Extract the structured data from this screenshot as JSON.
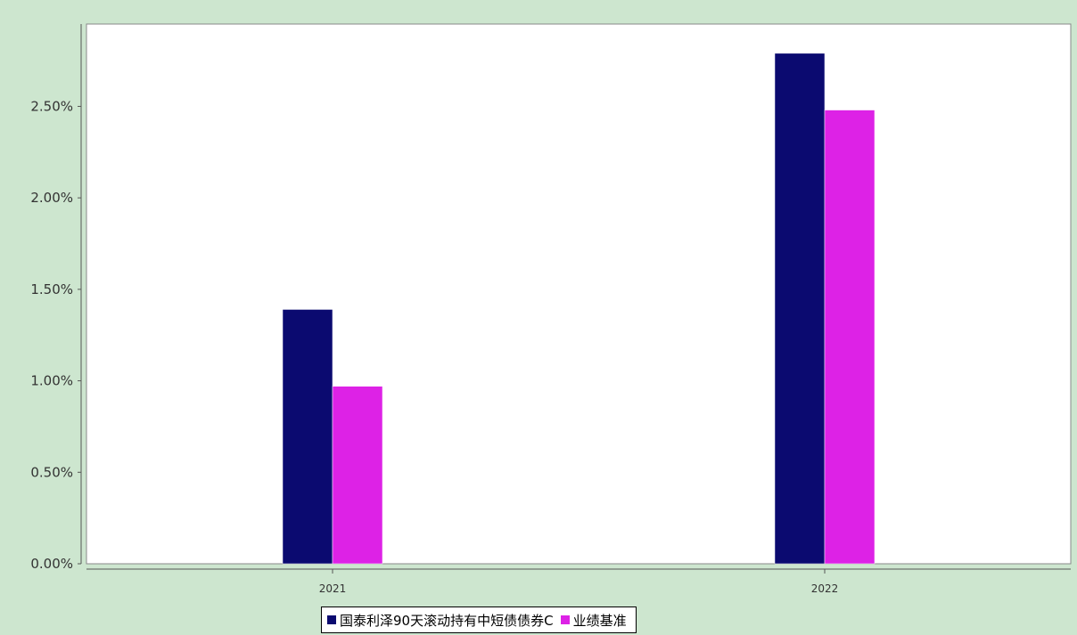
{
  "chart_data": {
    "type": "bar",
    "categories": [
      "2021",
      "2022"
    ],
    "series": [
      {
        "name": "国泰利泽90天滚动持有中短债债券C",
        "values": [
          1.39,
          2.79
        ],
        "color": "#0b0a70"
      },
      {
        "name": "业绩基准",
        "values": [
          0.97,
          2.48
        ],
        "color": "#dd22e6"
      }
    ],
    "y_ticks": [
      "0.00%",
      "0.50%",
      "1.00%",
      "1.50%",
      "2.00%",
      "2.50%"
    ],
    "y_tick_values": [
      0,
      0.5,
      1.0,
      1.5,
      2.0,
      2.5
    ],
    "ylim": [
      0,
      2.95
    ],
    "grid": false,
    "legend_position": "bottom-center",
    "plot_background": "#ffffff",
    "page_background": "#cde6cf"
  }
}
